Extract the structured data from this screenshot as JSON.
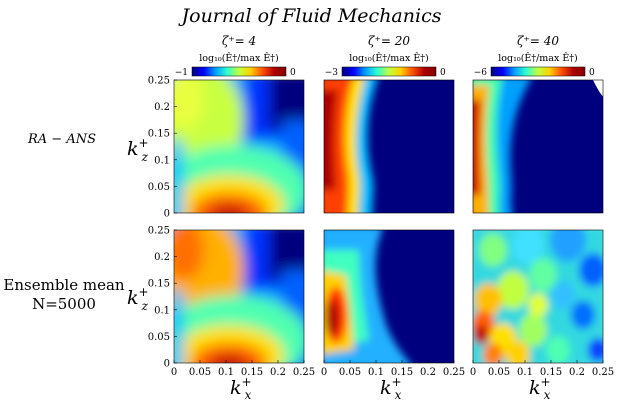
{
  "journal": "Journal of Fluid Mechanics",
  "columns": [
    {
      "title": "ζ⁺= 4",
      "cbar_label": "log₁₀(Ê†/max Ê†)",
      "cbar_min": "−1",
      "cbar_max": "0"
    },
    {
      "title": "ζ⁺= 20",
      "cbar_label": "log₁₀(Ê†/max Ê†)",
      "cbar_min": "−3",
      "cbar_max": "0"
    },
    {
      "title": "ζ⁺= 40",
      "cbar_label": "log₁₀(Ê†/max Ê†)",
      "cbar_min": "−6",
      "cbar_max": "0"
    }
  ],
  "rows": [
    {
      "label_lines": [
        "RA − ANS"
      ],
      "italic": true
    },
    {
      "label_lines": [
        "Ensemble mean",
        "N=5000"
      ],
      "italic": false
    }
  ],
  "axes": {
    "ylabel": "k",
    "ylabel_sup": "+",
    "ylabel_sub": "z",
    "xlabel": "k",
    "xlabel_sup": "+",
    "xlabel_sub": "x",
    "yticks": [
      "0",
      "0.05",
      "0.1",
      "0.15",
      "0.2",
      "0.25"
    ],
    "xticks_first": [
      "0",
      "0.05",
      "0.1",
      "0.15",
      "0.2",
      "0.25"
    ],
    "xticks_rest": [
      "0",
      "0.05",
      "0.1",
      "0.15",
      "0.2",
      "0.25"
    ]
  },
  "colormap": [
    "#00007f",
    "#0000ff",
    "#00a0ff",
    "#30ffd0",
    "#c0ff40",
    "#ffd000",
    "#ff5000",
    "#b00000",
    "#800000"
  ],
  "chart_data": {
    "type": "heatmap",
    "xlabel": "k_x^+",
    "ylabel": "k_z^+",
    "xlim": [
      0,
      0.25
    ],
    "ylim": [
      0,
      0.25
    ],
    "panels": [
      {
        "row": "RA - ANS",
        "column": "ζ+ = 4",
        "clim": [
          -1,
          0
        ],
        "peak_kx": 0.11,
        "peak_kz": 0.01
      },
      {
        "row": "RA - ANS",
        "column": "ζ+ = 20",
        "clim": [
          -3,
          0
        ],
        "peak_kx": 0.01,
        "peak_kz": 0.12
      },
      {
        "row": "RA - ANS",
        "column": "ζ+ = 40",
        "clim": [
          -6,
          0
        ],
        "peak_kx": 0.01,
        "peak_kz": 0.12
      },
      {
        "row": "Ensemble mean N=5000",
        "column": "ζ+ = 4",
        "clim": [
          -1,
          0
        ],
        "peak_kx": 0.11,
        "peak_kz": 0.01
      },
      {
        "row": "Ensemble mean N=5000",
        "column": "ζ+ = 20",
        "clim": [
          -3,
          0
        ],
        "peak_kx": 0.01,
        "peak_kz": 0.09
      },
      {
        "row": "Ensemble mean N=5000",
        "column": "ζ+ = 40",
        "clim": [
          -6,
          0
        ],
        "peak_kx": 0.01,
        "peak_kz": 0.09
      }
    ]
  }
}
